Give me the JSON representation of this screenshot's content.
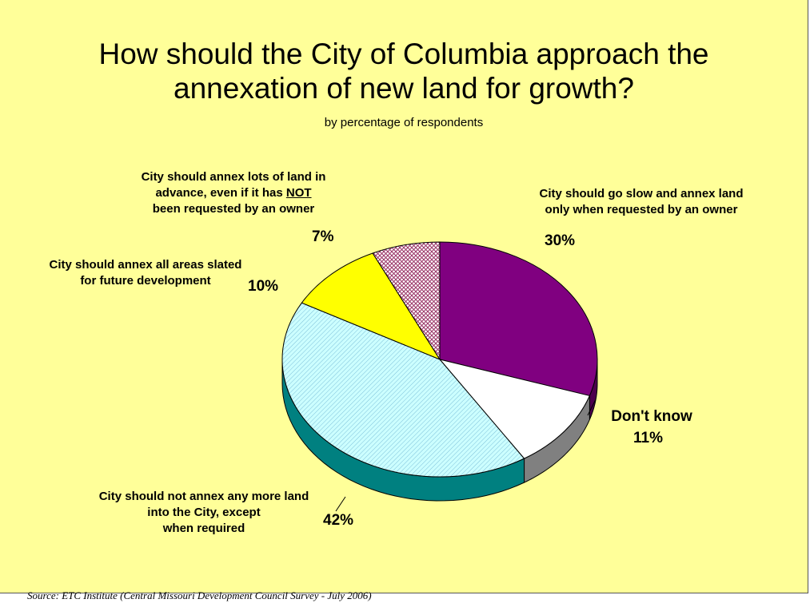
{
  "title_line1": "How should the City of Columbia approach the",
  "title_line2": "annexation of new land for growth?",
  "subtitle": "by percentage of respondents",
  "source": "Source:  ETC Institute (Central Missouri Development Council Survey - July 2006)",
  "chart_data": {
    "type": "pie",
    "title": "How should the City of Columbia approach the annexation of new land for growth?",
    "subtitle": "by percentage of respondents",
    "three_d": true,
    "slices": [
      {
        "label_lines": [
          "City should go slow and annex land",
          "only when requested by an owner"
        ],
        "value": 30,
        "value_label": "30%",
        "color": "#800080",
        "side_color": "#4d004d",
        "fill": "solid"
      },
      {
        "label_lines": [
          "Don't know"
        ],
        "value": 11,
        "value_label": "11%",
        "color": "#FFFFFF",
        "side_color": "#808080",
        "fill": "solid"
      },
      {
        "label_lines": [
          "City should not annex any more land",
          "into the City, except",
          "when required"
        ],
        "value": 42,
        "value_label": "42%",
        "color": "#CCFFFF",
        "side_color": "#008080",
        "fill": "diagonal-hatch"
      },
      {
        "label_lines": [
          "City should annex all areas slated",
          "for future development"
        ],
        "value": 10,
        "value_label": "10%",
        "color": "#FFFF00",
        "side_color": "#b3b300",
        "fill": "solid"
      },
      {
        "label_prefix": "City should annex lots of land in",
        "label_mid_before": "advance, even if it has ",
        "label_emphasis": "NOT",
        "label_mid_after": "",
        "label_suffix": "been requested by an owner",
        "value": 7,
        "value_label": "7%",
        "color": "#FFFFFF",
        "pattern_color": "#993366",
        "side_color": "#993366",
        "fill": "cross-hatch"
      }
    ]
  }
}
